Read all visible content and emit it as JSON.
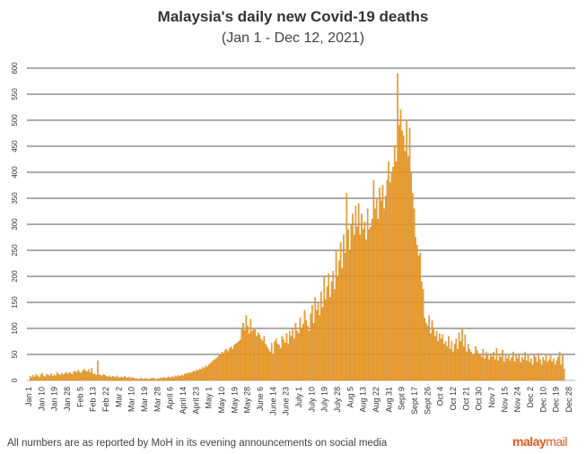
{
  "title": "Malaysia's daily new Covid-19 deaths",
  "subtitle": "(Jan 1 - Dec 12, 2021)",
  "footer": "All numbers are as reported by MoH in its evening announcements on social media",
  "brand": {
    "part1": "malay",
    "part2": "mail",
    "color": "#e4571f"
  },
  "chart_data": {
    "type": "bar",
    "title": "Malaysia's daily new Covid-19 deaths",
    "subtitle": "(Jan 1 - Dec 12, 2021)",
    "xlabel": "",
    "ylabel": "",
    "ylim": [
      0,
      600
    ],
    "y_ticks": [
      0,
      50,
      100,
      150,
      200,
      250,
      300,
      350,
      400,
      450,
      500,
      550,
      600
    ],
    "grid": true,
    "bar_color": "#f0a02f",
    "bar_edge_color": "#c97d12",
    "start_date": "Jan 1",
    "x_range": [
      "Jan 1",
      "Dec 28"
    ],
    "x_tick_labels": [
      "Jan 1",
      "Jan 10",
      "Jan 19",
      "Jan 28",
      "Feb 5",
      "Feb 13",
      "Feb 22",
      "Mar 2",
      "Mar 10",
      "Mar 19",
      "Mar 28",
      "April 6",
      "April 14",
      "April 23",
      "May 1",
      "May 10",
      "May 19",
      "May 28",
      "June 6",
      "June 14",
      "June 23",
      "July 1",
      "July 10",
      "July 19",
      "July 28",
      "Aug 5",
      "Aug 13",
      "Aug 22",
      "Aug 31",
      "Sept 9",
      "Sept 17",
      "Sept 26",
      "Oct 4",
      "Oct 12",
      "Oct 21",
      "Oct 30",
      "Nov 7",
      "Nov 15",
      "Nov 24",
      "Dec 2",
      "Dec 10",
      "Dec 19",
      "Dec 28"
    ],
    "values": [
      8,
      5,
      10,
      7,
      12,
      9,
      6,
      11,
      14,
      8,
      7,
      12,
      10,
      9,
      13,
      8,
      11,
      9,
      15,
      12,
      10,
      14,
      11,
      13,
      16,
      12,
      15,
      14,
      12,
      17,
      18,
      15,
      20,
      16,
      14,
      19,
      22,
      18,
      17,
      21,
      15,
      24,
      12,
      13,
      10,
      38,
      11,
      10,
      9,
      12,
      10,
      8,
      7,
      9,
      6,
      8,
      7,
      6,
      9,
      5,
      6,
      7,
      5,
      8,
      6,
      5,
      7,
      4,
      6,
      5,
      3,
      4,
      2,
      3,
      5,
      2,
      3,
      4,
      3,
      2,
      3,
      4,
      5,
      3,
      2,
      4,
      3,
      5,
      4,
      6,
      5,
      4,
      7,
      6,
      5,
      8,
      6,
      9,
      7,
      10,
      8,
      11,
      9,
      12,
      14,
      13,
      15,
      14,
      16,
      18,
      17,
      20,
      19,
      22,
      21,
      25,
      23,
      28,
      26,
      30,
      32,
      35,
      38,
      40,
      42,
      45,
      48,
      50,
      55,
      52,
      58,
      60,
      56,
      62,
      65,
      60,
      68,
      70,
      72,
      75,
      78,
      98,
      110,
      96,
      125,
      105,
      90,
      118,
      95,
      100,
      98,
      85,
      92,
      88,
      80,
      76,
      85,
      70,
      65,
      60,
      55,
      72,
      50,
      75,
      80,
      70,
      68,
      62,
      85,
      78,
      72,
      90,
      70,
      95,
      85,
      100,
      80,
      110,
      95,
      90,
      120,
      100,
      108,
      135,
      115,
      105,
      95,
      128,
      145,
      110,
      160,
      135,
      150,
      125,
      170,
      140,
      200,
      155,
      180,
      205,
      160,
      190,
      210,
      175,
      250,
      200,
      230,
      265,
      215,
      280,
      245,
      360,
      290,
      250,
      300,
      320,
      280,
      335,
      295,
      340,
      280,
      320,
      290,
      305,
      270,
      330,
      290,
      295,
      310,
      385,
      330,
      350,
      310,
      370,
      345,
      375,
      330,
      355,
      385,
      420,
      380,
      400,
      410,
      450,
      420,
      590,
      490,
      520,
      480,
      470,
      440,
      500,
      430,
      485,
      400,
      360,
      330,
      275,
      260,
      240,
      245,
      190,
      175,
      120,
      110,
      105,
      125,
      90,
      115,
      100,
      85,
      95,
      75,
      90,
      80,
      88,
      70,
      75,
      65,
      85,
      60,
      75,
      55,
      70,
      80,
      60,
      92,
      75,
      100,
      65,
      88,
      55,
      70,
      60,
      55,
      50,
      48,
      65,
      58,
      52,
      50,
      45,
      60,
      42,
      55,
      48,
      40,
      50,
      45,
      55,
      40,
      62,
      38,
      50,
      44,
      58,
      35,
      48,
      42,
      50,
      38,
      44,
      55,
      36,
      50,
      42,
      48,
      35,
      45,
      40,
      55,
      38,
      50,
      35,
      42,
      30,
      48,
      45,
      35,
      52,
      40,
      30,
      45,
      38,
      50,
      35,
      40,
      48,
      36,
      42,
      30,
      38,
      45,
      55,
      30,
      48,
      22
    ]
  }
}
